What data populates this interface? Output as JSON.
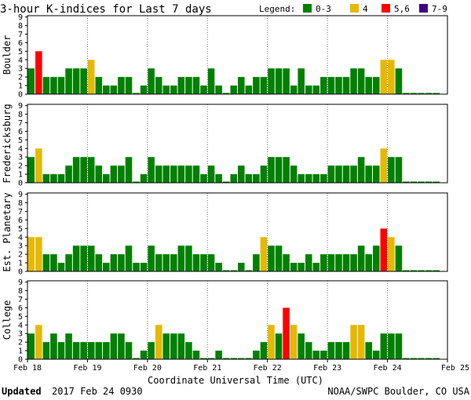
{
  "title": "3-hour K-indices for Last 7 days",
  "legend": {
    "label": "Legend:",
    "items": [
      {
        "label": "0-3",
        "color": "#008000"
      },
      {
        "label": "4",
        "color": "#e6b800"
      },
      {
        "label": "5,6",
        "color": "#ff0000"
      },
      {
        "label": "7-9",
        "color": "#400080"
      }
    ]
  },
  "footer": {
    "updated_label": "Updated",
    "updated_value": "2017 Feb 24 0930",
    "credit": "NOAA/SWPC Boulder, CO USA"
  },
  "chart_data": {
    "type": "bar",
    "xlabel": "Coordinate Universal Time (UTC)",
    "x_ticks": [
      "Feb 18",
      "Feb 19",
      "Feb 20",
      "Feb 21",
      "Feb 22",
      "Feb 23",
      "Feb 24",
      "Feb 25"
    ],
    "ylim": [
      0,
      9
    ],
    "y_ticks": [
      "0",
      "1",
      "2",
      "3",
      "4",
      "5",
      "6",
      "7",
      "8",
      "9"
    ],
    "interval_hours": 3,
    "color_scale": {
      "0-3": "#008000",
      "4": "#e6b800",
      "5-6": "#ff0000",
      "7-9": "#400080"
    },
    "series": [
      {
        "name": "Boulder",
        "values": [
          3,
          5,
          2,
          2,
          2,
          3,
          3,
          3,
          4,
          2,
          1,
          1,
          2,
          2,
          0,
          1,
          3,
          2,
          1,
          1,
          2,
          2,
          2,
          1,
          3,
          1,
          0,
          1,
          2,
          1,
          2,
          2,
          3,
          3,
          3,
          1,
          3,
          1,
          1,
          2,
          2,
          2,
          2,
          3,
          3,
          2,
          2,
          4,
          4,
          3,
          0,
          0,
          0,
          0,
          0
        ]
      },
      {
        "name": "Fredericksburg",
        "values": [
          3,
          4,
          1,
          1,
          1,
          2,
          3,
          3,
          3,
          2,
          1,
          2,
          2,
          3,
          0,
          1,
          3,
          2,
          2,
          2,
          2,
          2,
          2,
          1,
          2,
          1,
          0,
          1,
          2,
          1,
          1,
          2,
          3,
          3,
          3,
          2,
          1,
          1,
          1,
          1,
          2,
          2,
          2,
          2,
          3,
          2,
          2,
          4,
          3,
          3,
          0,
          0,
          0,
          0,
          0
        ]
      },
      {
        "name": "Est. Planetary",
        "values": [
          4,
          4,
          2,
          2,
          1,
          2,
          3,
          3,
          3,
          2,
          1,
          2,
          2,
          3,
          1,
          1,
          3,
          2,
          2,
          2,
          3,
          3,
          2,
          2,
          2,
          1,
          0,
          0,
          1,
          0,
          2,
          4,
          3,
          3,
          2,
          1,
          1,
          2,
          1,
          2,
          2,
          2,
          2,
          2,
          3,
          2,
          3,
          5,
          4,
          3,
          0,
          0,
          0,
          0,
          0
        ]
      },
      {
        "name": "College",
        "values": [
          3,
          4,
          2,
          3,
          2,
          3,
          2,
          2,
          2,
          2,
          2,
          3,
          3,
          2,
          0,
          1,
          2,
          4,
          3,
          3,
          3,
          2,
          1,
          0,
          0,
          1,
          0,
          0,
          0,
          0,
          1,
          2,
          4,
          3,
          6,
          4,
          3,
          2,
          1,
          1,
          2,
          2,
          2,
          4,
          4,
          2,
          1,
          3,
          3,
          3,
          0,
          0,
          0,
          0,
          0
        ]
      }
    ]
  }
}
